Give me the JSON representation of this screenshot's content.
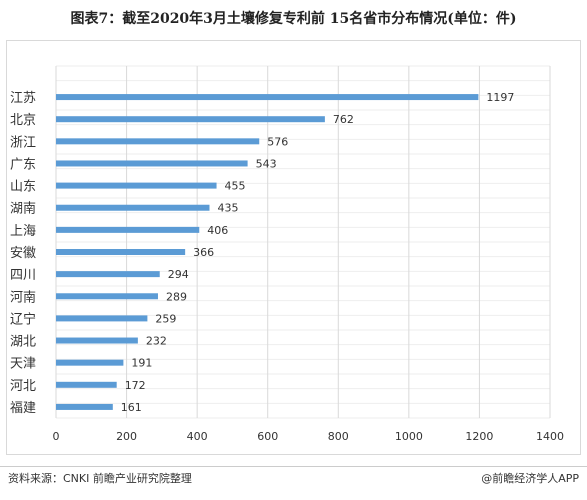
{
  "title": "图表7：截至2020年3月土壤修复专利前 15名省市分布情况(单位：件)",
  "footer": {
    "source": "资料来源：CNKI 前瞻产业研究院整理",
    "credit": "@前瞻经济学人APP"
  },
  "colors": {
    "bar": "#5b9bd5",
    "grid_major": "#d9d9d9",
    "grid_minor": "#eeeeee",
    "text": "#333333"
  },
  "chart_data": {
    "type": "bar",
    "orientation": "horizontal",
    "categories": [
      "江苏",
      "北京",
      "浙江",
      "广东",
      "山东",
      "湖南",
      "上海",
      "安徽",
      "四川",
      "河南",
      "辽宁",
      "湖北",
      "天津",
      "河北",
      "福建"
    ],
    "values": [
      1197,
      762,
      576,
      543,
      455,
      435,
      406,
      366,
      294,
      289,
      259,
      232,
      191,
      172,
      161
    ],
    "value_labels": [
      "1197",
      "762",
      "576",
      "543",
      "455",
      "435",
      "406",
      "366",
      "294",
      "289",
      "259",
      "232",
      "191",
      "172",
      "161"
    ],
    "xlim": [
      0,
      1400
    ],
    "xticks": [
      0,
      200,
      400,
      600,
      800,
      1000,
      1200,
      1400
    ],
    "xtick_labels": [
      "0",
      "200",
      "400",
      "600",
      "800",
      "1000",
      "1200",
      "1400"
    ],
    "xlabel": "",
    "ylabel": "",
    "grid": true,
    "legend": "none"
  }
}
